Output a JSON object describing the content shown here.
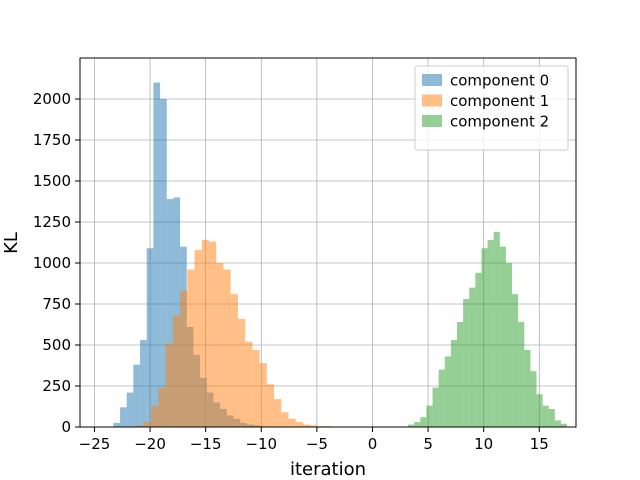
{
  "chart_data": {
    "type": "histogram",
    "xlabel": "iteration",
    "ylabel": "KL",
    "xlim": [
      -26.3,
      18.3
    ],
    "ylim": [
      0,
      2250
    ],
    "grid": true,
    "legend_position": "top-right",
    "x_ticks": [
      -25,
      -20,
      -15,
      -10,
      -5,
      0,
      5,
      10,
      15
    ],
    "x_tick_labels": [
      "−25",
      "−20",
      "−15",
      "−10",
      "−5",
      "0",
      "5",
      "10",
      "15"
    ],
    "y_ticks": [
      0,
      250,
      500,
      750,
      1000,
      1250,
      1500,
      1750,
      2000
    ],
    "y_tick_labels": [
      "0",
      "250",
      "500",
      "750",
      "1000",
      "1250",
      "1500",
      "1750",
      "2000"
    ],
    "series": [
      {
        "name": "component 0",
        "color": "#1f77b4",
        "opacity": 0.5,
        "bin_start": -23.3,
        "bin_width": 0.6,
        "counts": [
          25,
          120,
          210,
          380,
          530,
          1090,
          2100,
          2000,
          1390,
          1400,
          1100,
          610,
          440,
          300,
          210,
          150,
          110,
          70,
          50,
          25,
          15,
          10,
          5,
          3,
          2
        ]
      },
      {
        "name": "component 1",
        "color": "#ff7f0e",
        "opacity": 0.5,
        "bin_start": -21.2,
        "bin_width": 0.65,
        "counts": [
          10,
          30,
          130,
          240,
          510,
          680,
          830,
          960,
          1080,
          1140,
          1130,
          1000,
          960,
          810,
          660,
          520,
          470,
          390,
          260,
          170,
          90,
          50,
          30,
          15,
          10,
          5,
          5,
          3
        ]
      },
      {
        "name": "component 2",
        "color": "#2ca02c",
        "opacity": 0.5,
        "bin_start": 3.2,
        "bin_width": 0.55,
        "counts": [
          15,
          30,
          60,
          130,
          240,
          350,
          430,
          530,
          640,
          780,
          850,
          940,
          1090,
          1140,
          1190,
          1100,
          1000,
          810,
          640,
          470,
          340,
          200,
          130,
          110,
          40,
          20
        ]
      }
    ]
  }
}
